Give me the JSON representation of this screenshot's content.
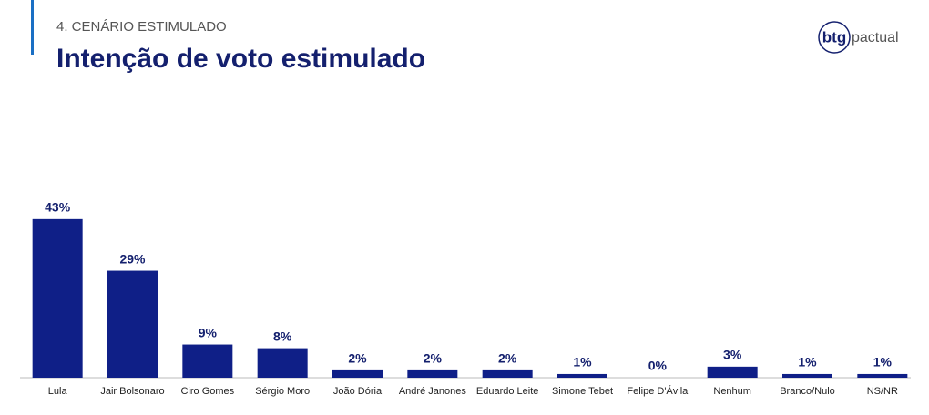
{
  "header": {
    "section": "4. CENÁRIO ESTIMULADO",
    "title": "Intenção de voto estimulado"
  },
  "logo": {
    "mark": "btg",
    "name": "pactual"
  },
  "chart_data": {
    "type": "bar",
    "categories": [
      "Lula",
      "Jair Bolsonaro",
      "Ciro Gomes",
      "Sérgio Moro",
      "João Dória",
      "André Janones",
      "Eduardo Leite",
      "Simone Tebet",
      "Felipe D'Ávila",
      "Nenhum",
      "Branco/Nulo",
      "NS/NR"
    ],
    "values": [
      43,
      29,
      9,
      8,
      2,
      2,
      2,
      1,
      0,
      3,
      1,
      1
    ],
    "value_labels": [
      "43%",
      "29%",
      "9%",
      "8%",
      "2%",
      "2%",
      "2%",
      "1%",
      "0%",
      "3%",
      "1%",
      "1%"
    ],
    "color": "#0f1f87"
  }
}
